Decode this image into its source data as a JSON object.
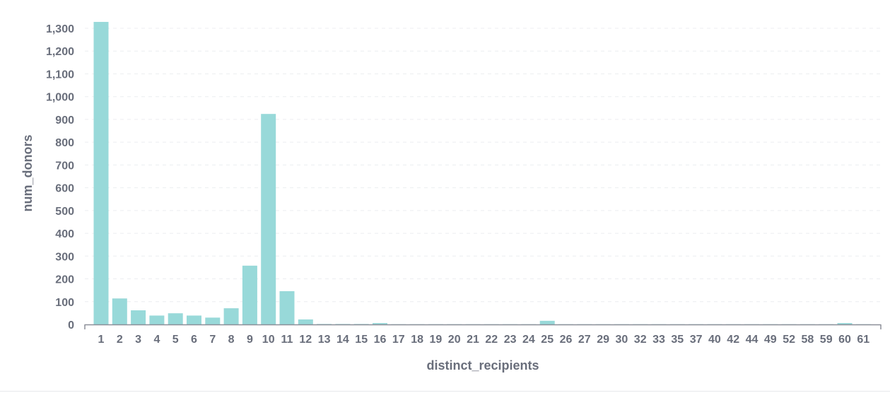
{
  "chart_data": {
    "type": "bar",
    "xlabel": "distinct_recipients",
    "ylabel": "num_donors",
    "ylim": [
      0,
      1300
    ],
    "yticks": [
      0,
      100,
      200,
      300,
      400,
      500,
      600,
      700,
      800,
      900,
      1000,
      1100,
      1200,
      1300
    ],
    "ytick_labels": [
      "0",
      "100",
      "200",
      "300",
      "400",
      "500",
      "600",
      "700",
      "800",
      "900",
      "1,000",
      "1,100",
      "1,200",
      "1,300"
    ],
    "grid": "horizontal dashed",
    "bar_color": "#98d9d9",
    "categories": [
      "1",
      "2",
      "3",
      "4",
      "5",
      "6",
      "7",
      "8",
      "9",
      "10",
      "11",
      "12",
      "13",
      "14",
      "15",
      "16",
      "17",
      "18",
      "19",
      "20",
      "21",
      "22",
      "23",
      "24",
      "25",
      "26",
      "27",
      "29",
      "30",
      "32",
      "33",
      "35",
      "37",
      "40",
      "42",
      "44",
      "49",
      "52",
      "58",
      "59",
      "60",
      "61"
    ],
    "values": [
      1328,
      114,
      62,
      39,
      49,
      39,
      30,
      71,
      258,
      924,
      146,
      22,
      2,
      2,
      2,
      6,
      1,
      1,
      1,
      1,
      1,
      1,
      1,
      1,
      16,
      1,
      1,
      1,
      1,
      1,
      1,
      1,
      1,
      1,
      1,
      1,
      1,
      1,
      1,
      1,
      6,
      1
    ]
  }
}
